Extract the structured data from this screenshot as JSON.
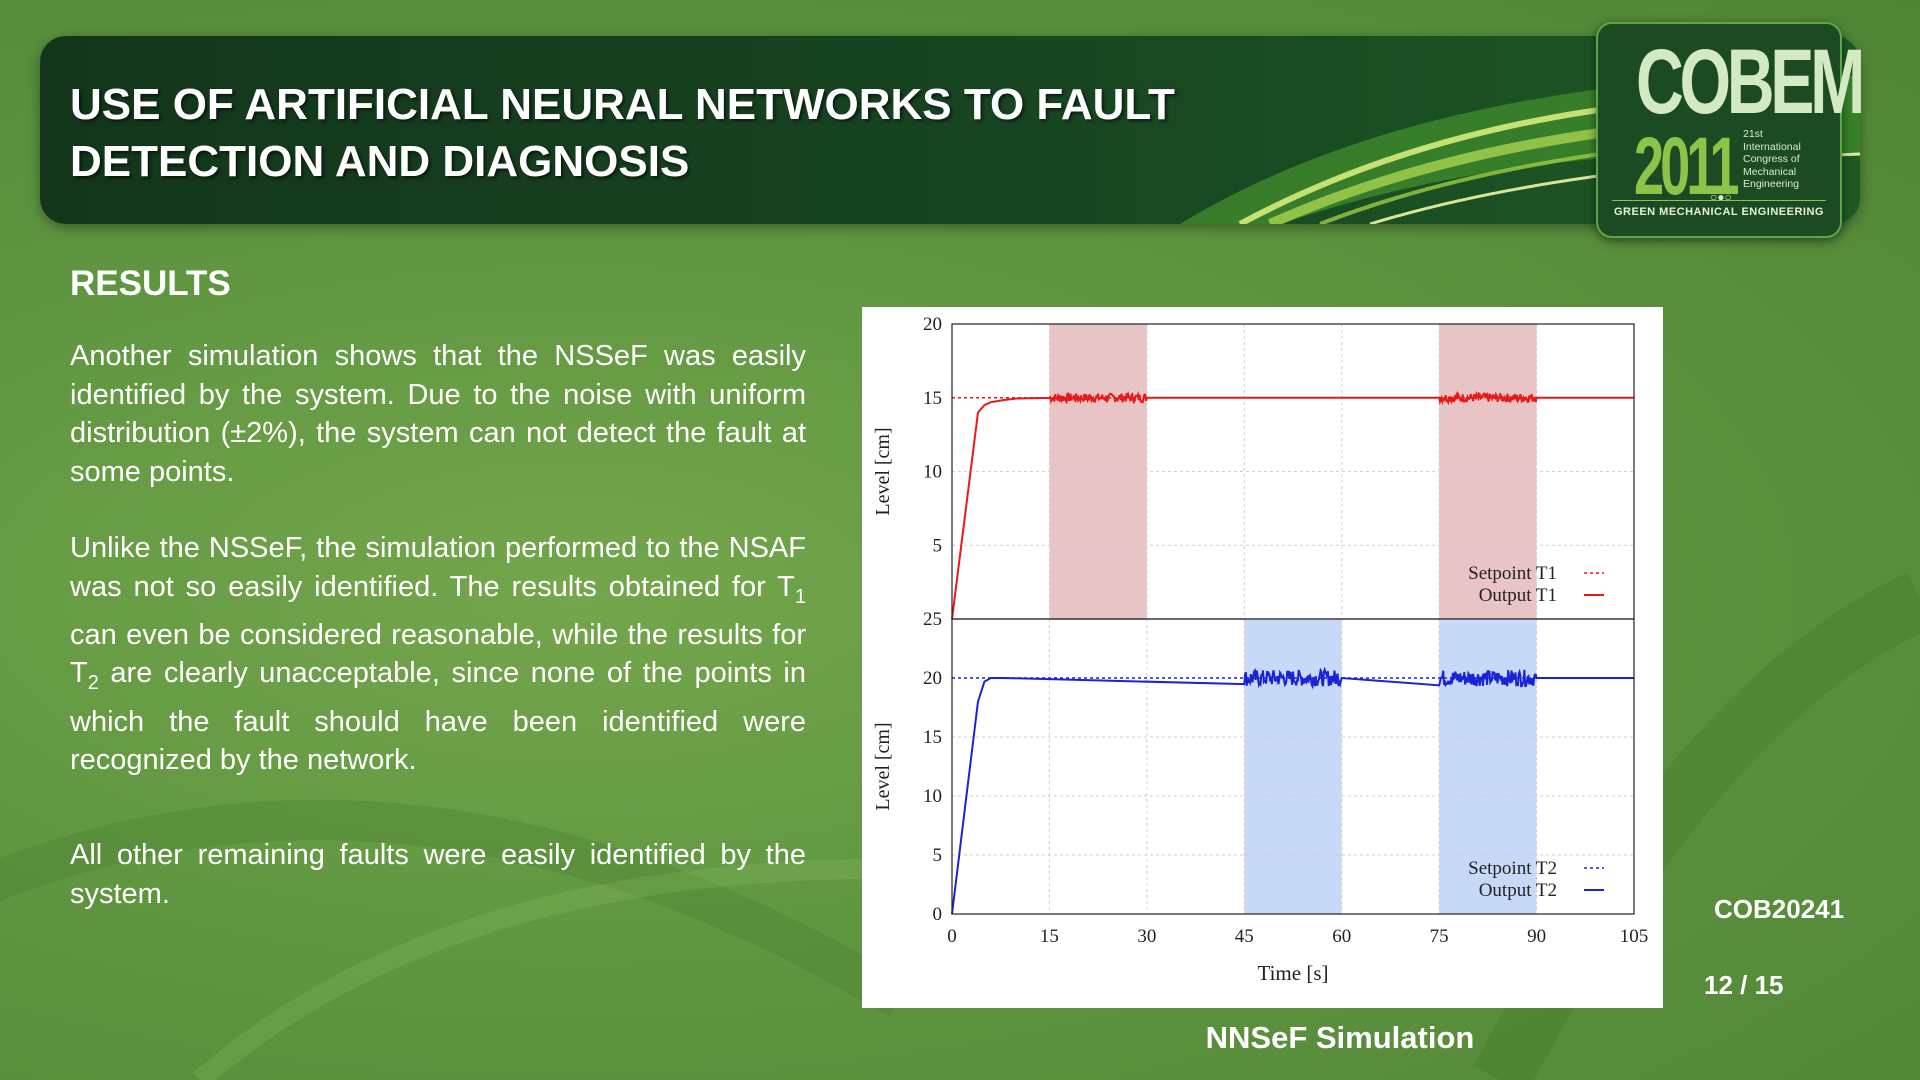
{
  "header": {
    "title_line1": "USE OF ARTIFICIAL NEURAL NETWORKS TO FAULT",
    "title_line2": "DETECTION AND DIAGNOSIS"
  },
  "logo": {
    "name": "COBEM",
    "year": "2011",
    "subtitle_lines": [
      "21st",
      "International",
      "Congress of",
      "Mechanical",
      "Engineering"
    ],
    "tagline": "GREEN MECHANICAL ENGINEERING"
  },
  "section_title": "RESULTS",
  "paragraphs": {
    "p1": "Another simulation shows that the NSSeF was easily identified by the system. Due to the noise with uniform distribution (±2%), the system can not detect the fault at some points.",
    "p2_part1": "Unlike the NSSeF, the simulation performed to the NSAF was not so easily identified. The results obtained for T",
    "p2_sub1": "1",
    "p2_part2": " can even be considered reasonable, while the results for T",
    "p2_sub2": "2",
    "p2_part3": " are clearly unacceptable, since none of the points in which the fault should have been identified were recognized by the network.",
    "p3": "All other remaining faults were easily identified by the system."
  },
  "caption": "NNSeF Simulation",
  "code": "COB20241",
  "page": "12 / 15",
  "colors": {
    "t1_line": "#e8191a",
    "t1_band": "#e8c4c6",
    "t2_line": "#1a24d6",
    "t2_band": "#c8d9f7"
  },
  "chart_data": [
    {
      "type": "line",
      "ylabel": "Level [cm]",
      "ylim": [
        0,
        20
      ],
      "yticks": [
        5,
        10,
        15,
        20
      ],
      "xlim": [
        0,
        105
      ],
      "grid": true,
      "fault_bands": [
        [
          15,
          30
        ],
        [
          75,
          90
        ]
      ],
      "series": [
        {
          "name": "Setpoint T1",
          "style": "dashed",
          "x": [
            0,
            105
          ],
          "y": [
            15,
            15
          ]
        },
        {
          "name": "Output T1",
          "style": "solid",
          "x": [
            0,
            1,
            2,
            3,
            4,
            5,
            6,
            8,
            10,
            15,
            30,
            75,
            90,
            105
          ],
          "y": [
            0,
            3.5,
            7,
            10.5,
            14,
            14.5,
            14.7,
            14.85,
            14.95,
            15,
            15,
            15,
            15,
            15
          ],
          "noise_intervals": [
            [
              15,
              30
            ],
            [
              75,
              90
            ]
          ],
          "noise_amplitude": 0.3
        }
      ],
      "legend_position": "bottom-right"
    },
    {
      "type": "line",
      "ylabel": "Level [cm]",
      "xlabel": "Time [s]",
      "ylim": [
        0,
        25
      ],
      "yticks": [
        0,
        5,
        10,
        15,
        20,
        25
      ],
      "xlim": [
        0,
        105
      ],
      "xticks": [
        0,
        15,
        30,
        45,
        60,
        75,
        90,
        105
      ],
      "grid": true,
      "fault_bands": [
        [
          45,
          60
        ],
        [
          75,
          90
        ]
      ],
      "series": [
        {
          "name": "Setpoint T2",
          "style": "dashed",
          "x": [
            0,
            105
          ],
          "y": [
            20,
            20
          ]
        },
        {
          "name": "Output T2",
          "style": "solid",
          "x": [
            0,
            1,
            2,
            3,
            4,
            5,
            6,
            8,
            45,
            60,
            75,
            90,
            105
          ],
          "y": [
            0,
            4.5,
            9,
            13.5,
            18,
            19.7,
            20,
            20,
            20,
            20,
            20,
            20,
            20
          ],
          "noise_intervals": [
            [
              45,
              60
            ],
            [
              75,
              90
            ]
          ],
          "noise_amplitude": 0.7
        }
      ],
      "legend_position": "bottom-right"
    }
  ]
}
